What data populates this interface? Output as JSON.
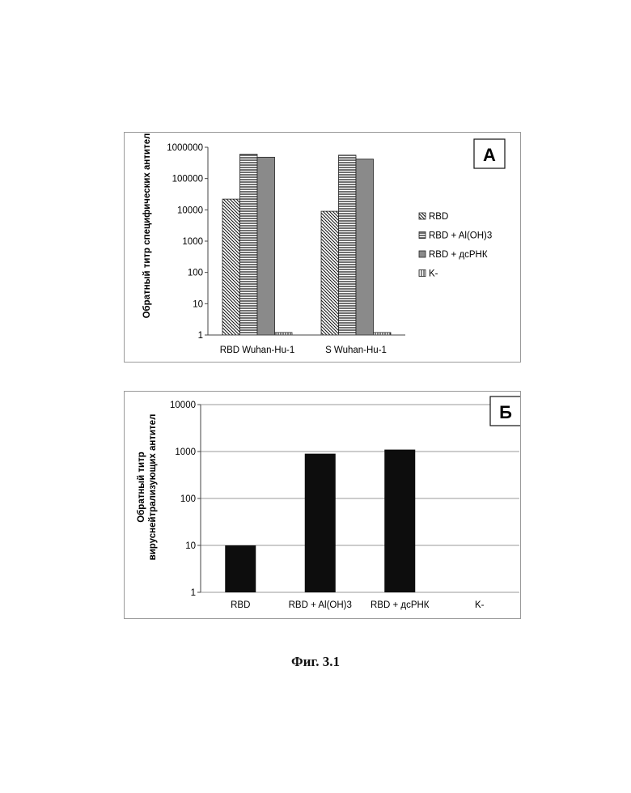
{
  "figure_caption": "Фиг. 3.1",
  "chart_data": [
    {
      "type": "bar",
      "panel_letter": "А",
      "ylabel": "Обратный титр специфических антител",
      "yscale": "log",
      "ylim": [
        1,
        1000000
      ],
      "yticks": [
        "1",
        "10",
        "100",
        "1000",
        "10000",
        "100000",
        "1000000"
      ],
      "categories": [
        "RBD Wuhan-Hu-1",
        "S Wuhan-Hu-1"
      ],
      "series": [
        {
          "name": "RBD",
          "pattern": "diagonal",
          "values": [
            22000,
            9000
          ]
        },
        {
          "name": "RBD + Al(OH)3",
          "pattern": "horizontal",
          "values": [
            600000,
            560000
          ]
        },
        {
          "name": "RBD + дсРНК",
          "pattern": "gray",
          "values": [
            480000,
            420000
          ]
        },
        {
          "name": "K-",
          "pattern": "vertical",
          "values": [
            1.2,
            1.2
          ]
        }
      ],
      "legend": "right",
      "grid": false
    },
    {
      "type": "bar",
      "panel_letter": "Б",
      "ylabel": "Обратный титр вируснейтрализующих антител",
      "yscale": "log",
      "ylim": [
        1,
        10000
      ],
      "yticks": [
        "1",
        "10",
        "100",
        "1000",
        "10000"
      ],
      "categories": [
        "RBD",
        "RBD + Al(OH)3",
        "RBD + дсРНК",
        "K-"
      ],
      "values": [
        10,
        900,
        1100,
        1
      ],
      "grid": true
    }
  ]
}
